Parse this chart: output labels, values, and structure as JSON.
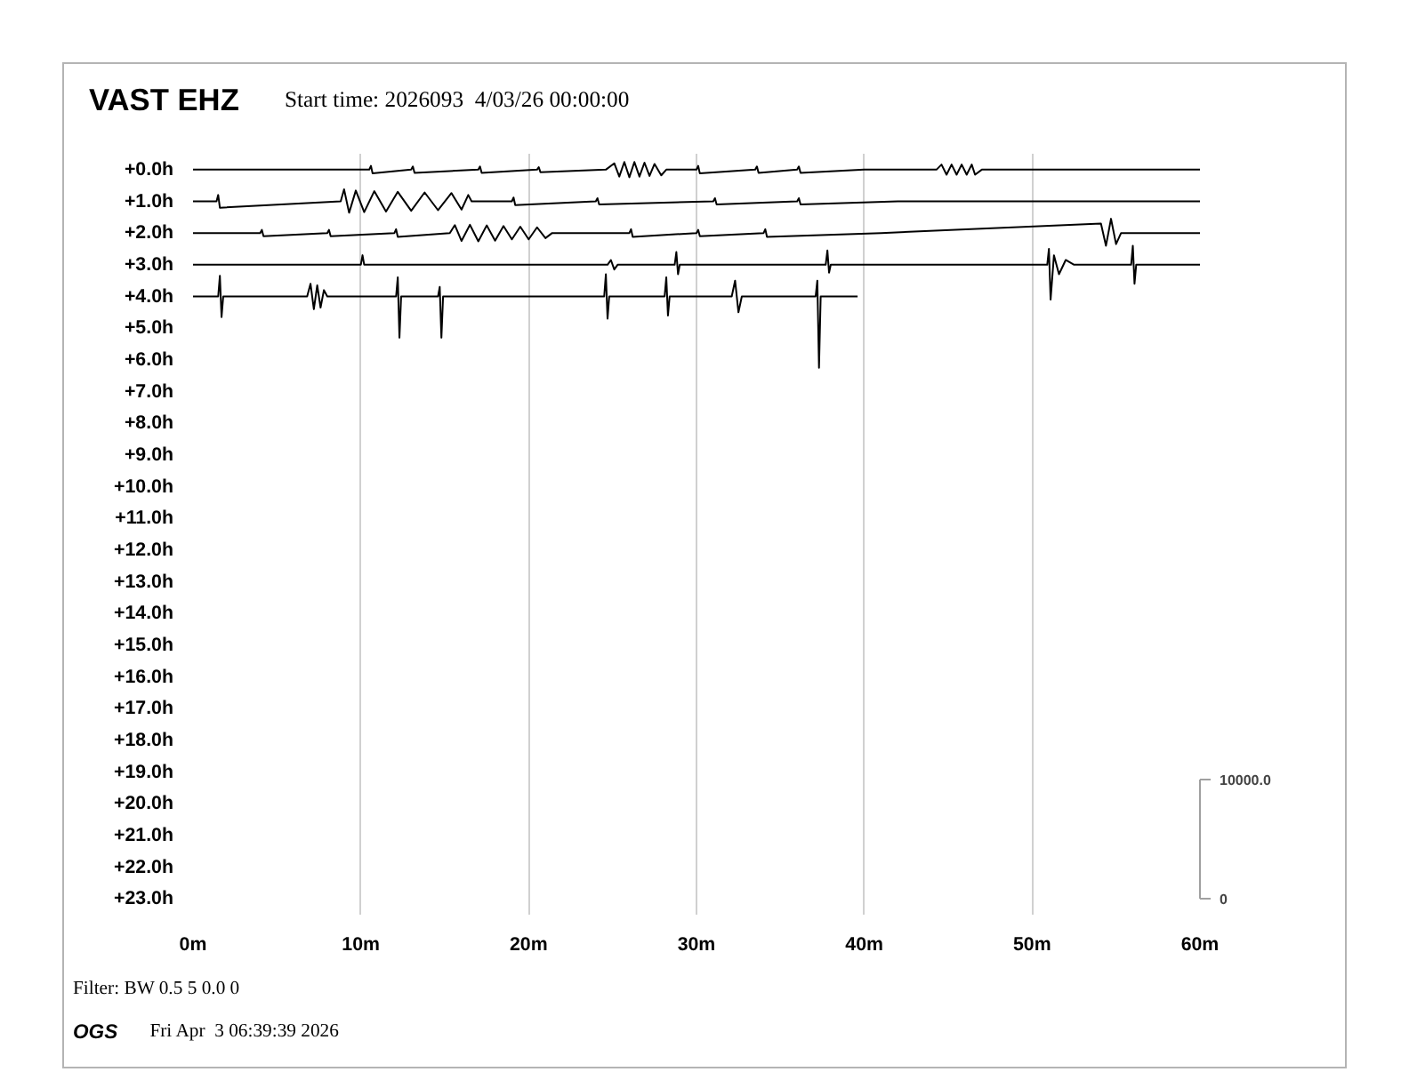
{
  "chart_data": {
    "type": "line",
    "title": "VAST EHZ",
    "subtitle": "Start time: 2026093  4/03/26 00:00:00",
    "annotations": [
      "Filter: BW 0.5 5 0.0 0",
      "OGS",
      "Fri Apr  3 06:39:39 2026"
    ],
    "xlim": [
      0,
      60
    ],
    "xticks": [
      {
        "value": 0,
        "label": "0m"
      },
      {
        "value": 10,
        "label": "10m"
      },
      {
        "value": 20,
        "label": "20m"
      },
      {
        "value": 30,
        "label": "30m"
      },
      {
        "value": 40,
        "label": "40m"
      },
      {
        "value": 50,
        "label": "50m"
      },
      {
        "value": 60,
        "label": "60m"
      }
    ],
    "ylim": [
      23.5,
      -0.5
    ],
    "yticks": [
      {
        "value": 0,
        "label": "+0.0h"
      },
      {
        "value": 1,
        "label": "+1.0h"
      },
      {
        "value": 2,
        "label": "+2.0h"
      },
      {
        "value": 3,
        "label": "+3.0h"
      },
      {
        "value": 4,
        "label": "+4.0h"
      },
      {
        "value": 5,
        "label": "+5.0h"
      },
      {
        "value": 6,
        "label": "+6.0h"
      },
      {
        "value": 7,
        "label": "+7.0h"
      },
      {
        "value": 8,
        "label": "+8.0h"
      },
      {
        "value": 9,
        "label": "+9.0h"
      },
      {
        "value": 10,
        "label": "+10.0h"
      },
      {
        "value": 11,
        "label": "+11.0h"
      },
      {
        "value": 12,
        "label": "+12.0h"
      },
      {
        "value": 13,
        "label": "+13.0h"
      },
      {
        "value": 14,
        "label": "+14.0h"
      },
      {
        "value": 15,
        "label": "+15.0h"
      },
      {
        "value": 16,
        "label": "+16.0h"
      },
      {
        "value": 17,
        "label": "+17.0h"
      },
      {
        "value": 18,
        "label": "+18.0h"
      },
      {
        "value": 19,
        "label": "+19.0h"
      },
      {
        "value": 20,
        "label": "+20.0h"
      },
      {
        "value": 21,
        "label": "+21.0h"
      },
      {
        "value": 22,
        "label": "+22.0h"
      },
      {
        "value": 23,
        "label": "+23.0h"
      }
    ],
    "y2lim": [
      -1330,
      62350
    ],
    "y2ticks": [
      {
        "value": 0,
        "label": "0"
      },
      {
        "value": 10000,
        "label": "10000.0"
      }
    ],
    "grid": "x",
    "series": [
      {
        "color": "#000000",
        "x": [
          0,
          5,
          10.5,
          10.6,
          10.7,
          13,
          13.1,
          13.2,
          17,
          17.1,
          17.2,
          20.5,
          20.6,
          20.7,
          24.6,
          25.1,
          25.4,
          25.7,
          26,
          26.3,
          26.6,
          26.9,
          27.2,
          27.5,
          27.9,
          28.2,
          30,
          30.1,
          30.2,
          33.5,
          33.6,
          33.7,
          36,
          36.1,
          36.2,
          40,
          44.3,
          44.6,
          44.9,
          45.2,
          45.5,
          45.8,
          46.1,
          46.4,
          46.6,
          47,
          52,
          60
        ],
        "values": [
          0,
          0,
          0,
          -0.12,
          0.12,
          0,
          -0.1,
          0.1,
          0,
          -0.1,
          0.1,
          0,
          -0.08,
          0.08,
          0,
          -0.2,
          0.22,
          -0.24,
          0.24,
          -0.24,
          0.22,
          -0.22,
          0.2,
          -0.18,
          0.18,
          0,
          0,
          -0.12,
          0.12,
          0,
          -0.1,
          0.1,
          0,
          -0.1,
          0.1,
          0,
          0,
          -0.16,
          0.16,
          -0.16,
          0.16,
          -0.16,
          0.16,
          -0.16,
          0.16,
          0,
          0,
          0
        ]
      },
      {
        "color": "#000000",
        "x": [
          0,
          1.4,
          1.5,
          1.6,
          8.8,
          9.0,
          9.3,
          9.7,
          10.2,
          10.8,
          11.5,
          12.2,
          13,
          13.8,
          14.6,
          15.4,
          16.0,
          16.4,
          16.6,
          19,
          19.1,
          19.2,
          24,
          24.1,
          24.2,
          31,
          31.1,
          31.2,
          36,
          36.1,
          36.2,
          42,
          47,
          60
        ],
        "values": [
          1,
          1,
          0.8,
          1.2,
          1,
          0.62,
          1.36,
          0.66,
          1.34,
          0.68,
          1.32,
          0.7,
          1.3,
          0.72,
          1.28,
          0.74,
          1.26,
          0.8,
          1,
          1,
          0.88,
          1.12,
          1,
          0.9,
          1.1,
          1,
          0.9,
          1.1,
          1,
          0.9,
          1.1,
          1,
          1,
          1
        ]
      },
      {
        "color": "#000000",
        "x": [
          0,
          4,
          4.1,
          4.2,
          8,
          8.1,
          8.2,
          12,
          12.1,
          12.2,
          15.3,
          15.6,
          16.0,
          16.5,
          17.0,
          17.5,
          18.0,
          18.5,
          19,
          19.5,
          20,
          20.5,
          21,
          21.4,
          24,
          26,
          26.1,
          26.2,
          30,
          30.1,
          30.2,
          34,
          34.1,
          34.2,
          41,
          54.1,
          54.4,
          54.7,
          55.0,
          55.3,
          60
        ],
        "values": [
          2,
          2,
          1.9,
          2.1,
          2,
          1.9,
          2.1,
          2,
          1.88,
          2.12,
          2,
          1.75,
          2.25,
          1.74,
          2.26,
          1.76,
          2.24,
          1.78,
          2.2,
          1.8,
          2.2,
          1.82,
          2.16,
          2,
          2,
          2,
          1.88,
          2.12,
          2,
          1.9,
          2.1,
          2,
          1.88,
          2.12,
          2,
          1.7,
          2.4,
          1.55,
          2.35,
          2,
          2
        ]
      },
      {
        "color": "#000000",
        "x": [
          0,
          10,
          10.1,
          10.2,
          24.7,
          24.9,
          25.1,
          25.3,
          28.7,
          28.8,
          28.9,
          29.0,
          37.7,
          37.8,
          37.9,
          38.0,
          50.9,
          51.0,
          51.1,
          51.3,
          51.6,
          52.0,
          52.5,
          55.9,
          56.0,
          56.1,
          56.2,
          60
        ],
        "values": [
          3,
          3,
          2.7,
          3,
          3,
          2.85,
          3.15,
          3,
          3,
          2.6,
          3.3,
          3,
          3,
          2.55,
          3.25,
          3,
          3,
          2.5,
          4.1,
          2.7,
          3.3,
          2.85,
          3,
          3,
          2.4,
          3.6,
          3,
          3
        ]
      },
      {
        "color": "#000000",
        "x": [
          0,
          1.5,
          1.6,
          1.7,
          1.8,
          6.8,
          7.0,
          7.2,
          7.4,
          7.6,
          7.8,
          8.0,
          12.1,
          12.2,
          12.3,
          12.4,
          14.6,
          14.7,
          14.8,
          14.9,
          24.5,
          24.6,
          24.7,
          24.8,
          28.1,
          28.2,
          28.3,
          28.4,
          32.1,
          32.3,
          32.5,
          32.7,
          37.1,
          37.2,
          37.3,
          37.4,
          39.6
        ],
        "values": [
          4,
          4,
          3.35,
          4.65,
          4,
          4,
          3.6,
          4.4,
          3.65,
          4.35,
          3.8,
          4,
          4,
          3.4,
          5.3,
          4,
          4,
          3.7,
          5.3,
          4,
          4,
          3.3,
          4.7,
          4,
          4,
          3.4,
          4.6,
          4,
          4,
          3.5,
          4.5,
          4,
          4,
          3.5,
          6.25,
          4,
          4
        ]
      }
    ]
  }
}
